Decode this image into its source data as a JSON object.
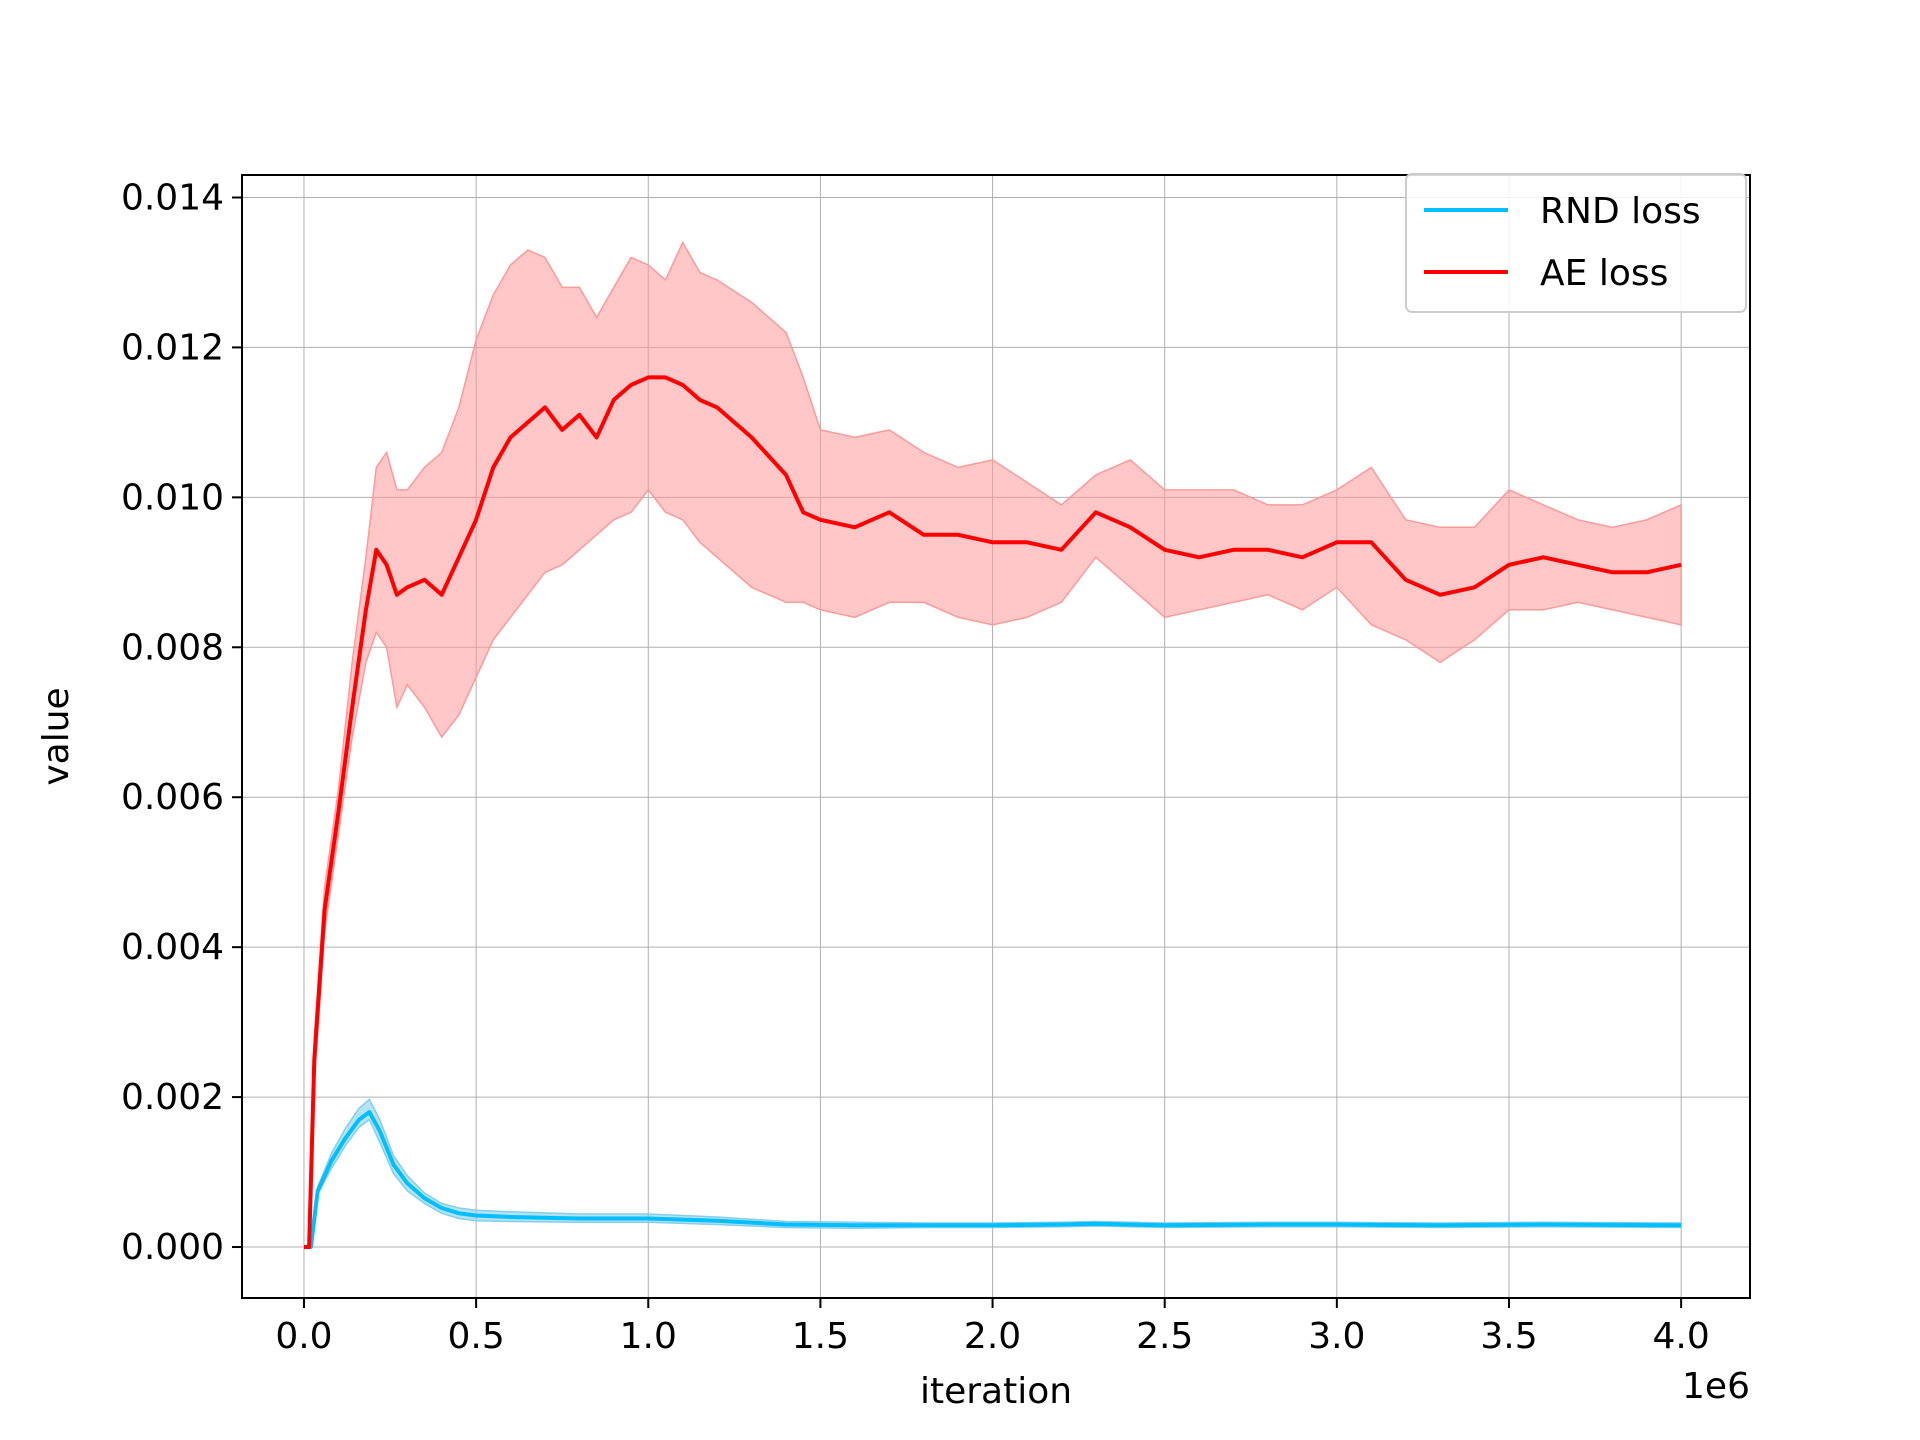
{
  "chart_data": {
    "type": "line",
    "title": "",
    "xlabel": "iteration",
    "ylabel": "value",
    "x_offset_label": "1e6",
    "xlim": [
      -0.18,
      4.2
    ],
    "ylim": [
      -0.00068,
      0.0143
    ],
    "x_ticks": [
      0.0,
      0.5,
      1.0,
      1.5,
      2.0,
      2.5,
      3.0,
      3.5,
      4.0
    ],
    "x_tick_labels": [
      "0.0",
      "0.5",
      "1.0",
      "1.5",
      "2.0",
      "2.5",
      "3.0",
      "3.5",
      "4.0"
    ],
    "y_ticks": [
      0.0,
      0.002,
      0.004,
      0.006,
      0.008,
      0.01,
      0.012,
      0.014
    ],
    "y_tick_labels": [
      "0.000",
      "0.002",
      "0.004",
      "0.006",
      "0.008",
      "0.010",
      "0.012",
      "0.014"
    ],
    "grid": true,
    "legend_position": "top-right",
    "series": [
      {
        "name": "RND loss",
        "color": "#00bfff",
        "band_color": "#87ceeb",
        "x": [
          0.0,
          0.02,
          0.04,
          0.08,
          0.12,
          0.16,
          0.19,
          0.22,
          0.26,
          0.3,
          0.35,
          0.4,
          0.45,
          0.5,
          0.6,
          0.8,
          1.0,
          1.2,
          1.4,
          1.6,
          1.8,
          2.0,
          2.2,
          2.3,
          2.5,
          2.8,
          3.0,
          3.3,
          3.6,
          4.0
        ],
        "y": [
          0.0,
          0.0,
          0.00075,
          0.00115,
          0.00145,
          0.0017,
          0.0018,
          0.00155,
          0.0011,
          0.00085,
          0.00065,
          0.00052,
          0.00045,
          0.00042,
          0.0004,
          0.00038,
          0.00038,
          0.00035,
          0.0003,
          0.00029,
          0.00029,
          0.00029,
          0.0003,
          0.00031,
          0.00029,
          0.0003,
          0.0003,
          0.00029,
          0.0003,
          0.00029
        ],
        "lower": [
          0.0,
          0.0,
          0.0007,
          0.00105,
          0.00135,
          0.0016,
          0.0017,
          0.0014,
          0.00098,
          0.00075,
          0.00058,
          0.00045,
          0.00038,
          0.00035,
          0.00034,
          0.00033,
          0.00033,
          0.0003,
          0.00026,
          0.00025,
          0.00026,
          0.00026,
          0.00027,
          0.00028,
          0.00026,
          0.00027,
          0.00027,
          0.00026,
          0.00027,
          0.00026
        ],
        "upper": [
          0.0,
          0.0,
          0.0008,
          0.00125,
          0.00158,
          0.00185,
          0.00197,
          0.0017,
          0.00122,
          0.00095,
          0.00072,
          0.00058,
          0.00052,
          0.00049,
          0.00047,
          0.00044,
          0.00044,
          0.0004,
          0.00034,
          0.00033,
          0.00032,
          0.00032,
          0.00033,
          0.00034,
          0.00032,
          0.00033,
          0.00033,
          0.00032,
          0.00033,
          0.00032
        ]
      },
      {
        "name": "AE loss",
        "color": "#ff0000",
        "band_color": "#ff9999",
        "x": [
          0.0,
          0.015,
          0.03,
          0.06,
          0.1,
          0.14,
          0.18,
          0.21,
          0.24,
          0.27,
          0.3,
          0.35,
          0.4,
          0.45,
          0.5,
          0.55,
          0.6,
          0.65,
          0.7,
          0.75,
          0.8,
          0.85,
          0.9,
          0.95,
          1.0,
          1.05,
          1.1,
          1.15,
          1.2,
          1.3,
          1.4,
          1.45,
          1.5,
          1.6,
          1.7,
          1.8,
          1.9,
          2.0,
          2.1,
          2.2,
          2.3,
          2.4,
          2.5,
          2.6,
          2.7,
          2.8,
          2.9,
          3.0,
          3.1,
          3.2,
          3.3,
          3.4,
          3.5,
          3.6,
          3.7,
          3.8,
          3.9,
          4.0
        ],
        "y": [
          0.0,
          0.0,
          0.0025,
          0.0045,
          0.0058,
          0.0072,
          0.0085,
          0.0093,
          0.0091,
          0.0087,
          0.0088,
          0.0089,
          0.0087,
          0.0092,
          0.0097,
          0.0104,
          0.0108,
          0.011,
          0.0112,
          0.0109,
          0.0111,
          0.0108,
          0.0113,
          0.0115,
          0.0116,
          0.0116,
          0.0115,
          0.0113,
          0.0112,
          0.0108,
          0.0103,
          0.0098,
          0.0097,
          0.0096,
          0.0098,
          0.0095,
          0.0095,
          0.0094,
          0.0094,
          0.0093,
          0.0098,
          0.0096,
          0.0093,
          0.0092,
          0.0093,
          0.0093,
          0.0092,
          0.0094,
          0.0094,
          0.0089,
          0.0087,
          0.0088,
          0.0091,
          0.0092,
          0.0091,
          0.009,
          0.009,
          0.0091
        ],
        "lower": [
          0.0,
          0.0,
          0.0022,
          0.0042,
          0.0055,
          0.0068,
          0.0078,
          0.0082,
          0.008,
          0.0072,
          0.0075,
          0.0072,
          0.0068,
          0.0071,
          0.0076,
          0.0081,
          0.0084,
          0.0087,
          0.009,
          0.0091,
          0.0093,
          0.0095,
          0.0097,
          0.0098,
          0.0101,
          0.0098,
          0.0097,
          0.0094,
          0.0092,
          0.0088,
          0.0086,
          0.0086,
          0.0085,
          0.0084,
          0.0086,
          0.0086,
          0.0084,
          0.0083,
          0.0084,
          0.0086,
          0.0092,
          0.0088,
          0.0084,
          0.0085,
          0.0086,
          0.0087,
          0.0085,
          0.0088,
          0.0083,
          0.0081,
          0.0078,
          0.0081,
          0.0085,
          0.0085,
          0.0086,
          0.0085,
          0.0084,
          0.0083
        ],
        "upper": [
          0.0,
          0.0,
          0.0028,
          0.0048,
          0.0061,
          0.0078,
          0.0092,
          0.0104,
          0.0106,
          0.0101,
          0.0101,
          0.0104,
          0.0106,
          0.0112,
          0.0121,
          0.0127,
          0.0131,
          0.0133,
          0.0132,
          0.0128,
          0.0128,
          0.0124,
          0.0128,
          0.0132,
          0.0131,
          0.0129,
          0.0134,
          0.013,
          0.0129,
          0.0126,
          0.0122,
          0.0116,
          0.0109,
          0.0108,
          0.0109,
          0.0106,
          0.0104,
          0.0105,
          0.0102,
          0.0099,
          0.0103,
          0.0105,
          0.0101,
          0.0101,
          0.0101,
          0.0099,
          0.0099,
          0.0101,
          0.0104,
          0.0097,
          0.0096,
          0.0096,
          0.0101,
          0.0099,
          0.0097,
          0.0096,
          0.0097,
          0.0099
        ]
      }
    ]
  }
}
